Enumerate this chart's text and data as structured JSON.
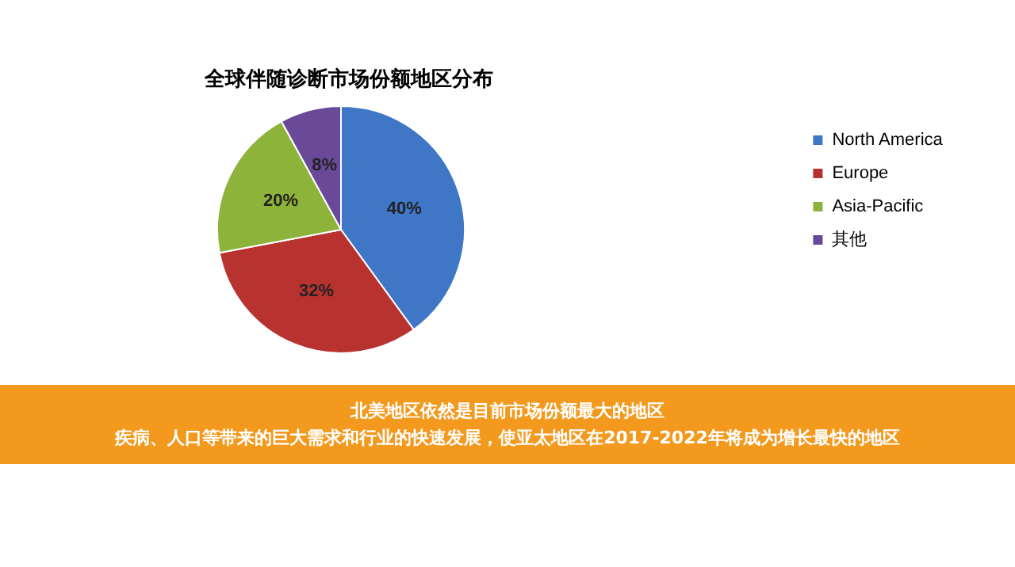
{
  "chart_data": {
    "type": "pie",
    "title": "全球伴随诊断市场份额地区分布",
    "categories": [
      "North America",
      "Europe",
      "Asia-Pacific",
      "其他"
    ],
    "values": [
      40,
      32,
      20,
      8
    ],
    "value_labels": [
      "40%",
      "32%",
      "20%",
      "8%"
    ],
    "colors": [
      "#3f77c6",
      "#b83230",
      "#8db33a",
      "#6a4a98"
    ],
    "legend": "right",
    "annotations": [
      "北美地区依然是目前市场份额最大的地区",
      "疾病、人口等带来的巨大需求和行业的快速发展，使亚太地区在2017-2022年将成为增长最快的地区"
    ]
  }
}
